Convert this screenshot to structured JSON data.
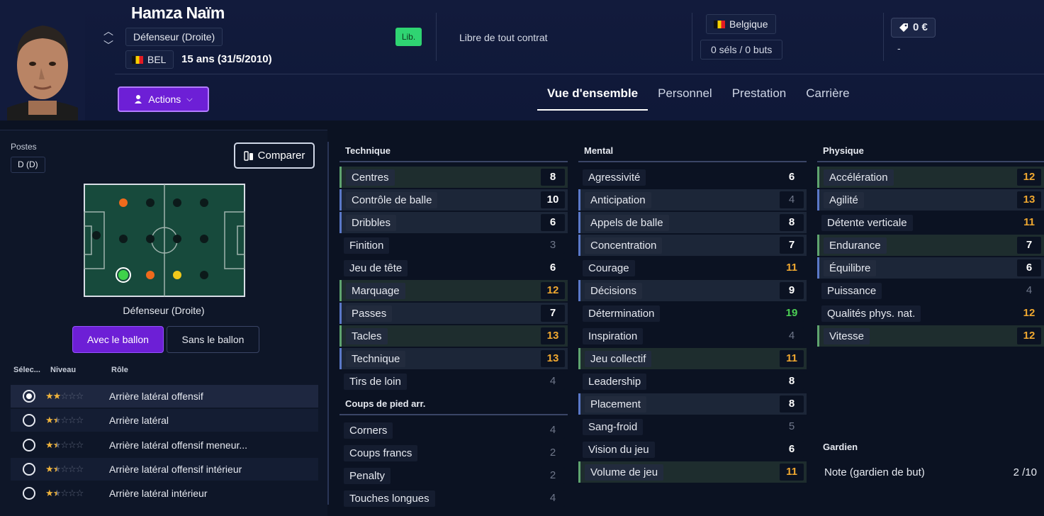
{
  "player": {
    "name": "Hamza Naïm",
    "position": "Défenseur (Droite)",
    "nationality_code": "BEL",
    "age": "15 ans (31/5/2010)",
    "status_badge": "Lib.",
    "contract": "Libre de tout contrat",
    "country": "Belgique",
    "caps": "0 séls / 0 buts",
    "value": "0 €",
    "value_sub": "-"
  },
  "header": {
    "actions_label": "Actions",
    "tabs": [
      {
        "label": "Vue d'ensemble",
        "active": true
      },
      {
        "label": "Personnel",
        "active": false
      },
      {
        "label": "Prestation",
        "active": false
      },
      {
        "label": "Carrière",
        "active": false
      }
    ]
  },
  "left": {
    "postes_label": "Postes",
    "postes_value": "D (D)",
    "compare_label": "Comparer",
    "pitch_label": "Défenseur (Droite)",
    "toggle_on": "Avec le ballon",
    "toggle_off": "Sans le ballon",
    "columns": {
      "select": "Sélec...",
      "level": "Niveau",
      "role": "Rôle"
    },
    "roles": [
      {
        "name": "Arrière latéral offensif",
        "stars": 2,
        "selected": true
      },
      {
        "name": "Arrière latéral",
        "stars": 1.5,
        "selected": false
      },
      {
        "name": "Arrière latéral offensif meneur...",
        "stars": 1.5,
        "selected": false
      },
      {
        "name": "Arrière latéral offensif intérieur",
        "stars": 1.5,
        "selected": false
      },
      {
        "name": "Arrière latéral intérieur",
        "stars": 1.5,
        "selected": false
      }
    ]
  },
  "technique": {
    "title": "Technique",
    "items": [
      {
        "name": "Centres",
        "value": "8",
        "hl": "hi"
      },
      {
        "name": "Contrôle de balle",
        "value": "10",
        "hl": "bl"
      },
      {
        "name": "Dribbles",
        "value": "6",
        "hl": "bl"
      },
      {
        "name": "Finition",
        "value": "3",
        "hl": "plain"
      },
      {
        "name": "Jeu de tête",
        "value": "6",
        "hl": "plain"
      },
      {
        "name": "Marquage",
        "value": "12",
        "hl": "hi"
      },
      {
        "name": "Passes",
        "value": "7",
        "hl": "bl"
      },
      {
        "name": "Tacles",
        "value": "13",
        "hl": "hi"
      },
      {
        "name": "Technique",
        "value": "13",
        "hl": "bl"
      },
      {
        "name": "Tirs de loin",
        "value": "4",
        "hl": "plain"
      }
    ]
  },
  "setpieces": {
    "title": "Coups de pied arr.",
    "items": [
      {
        "name": "Corners",
        "value": "4",
        "hl": "plain"
      },
      {
        "name": "Coups francs",
        "value": "2",
        "hl": "plain"
      },
      {
        "name": "Penalty",
        "value": "2",
        "hl": "plain"
      },
      {
        "name": "Touches longues",
        "value": "4",
        "hl": "plain"
      }
    ]
  },
  "mental": {
    "title": "Mental",
    "items": [
      {
        "name": "Agressivité",
        "value": "6",
        "hl": "plain"
      },
      {
        "name": "Anticipation",
        "value": "4",
        "hl": "bl"
      },
      {
        "name": "Appels de balle",
        "value": "8",
        "hl": "bl"
      },
      {
        "name": "Concentration",
        "value": "7",
        "hl": "bl"
      },
      {
        "name": "Courage",
        "value": "11",
        "hl": "plain"
      },
      {
        "name": "Décisions",
        "value": "9",
        "hl": "bl"
      },
      {
        "name": "Détermination",
        "value": "19",
        "hl": "plain"
      },
      {
        "name": "Inspiration",
        "value": "4",
        "hl": "plain"
      },
      {
        "name": "Jeu collectif",
        "value": "11",
        "hl": "hi"
      },
      {
        "name": "Leadership",
        "value": "8",
        "hl": "plain"
      },
      {
        "name": "Placement",
        "value": "8",
        "hl": "bl"
      },
      {
        "name": "Sang-froid",
        "value": "5",
        "hl": "plain"
      },
      {
        "name": "Vision du jeu",
        "value": "6",
        "hl": "plain"
      },
      {
        "name": "Volume de jeu",
        "value": "11",
        "hl": "hi"
      }
    ]
  },
  "physique": {
    "title": "Physique",
    "items": [
      {
        "name": "Accélération",
        "value": "12",
        "hl": "hi"
      },
      {
        "name": "Agilité",
        "value": "13",
        "hl": "bl"
      },
      {
        "name": "Détente verticale",
        "value": "11",
        "hl": "plain"
      },
      {
        "name": "Endurance",
        "value": "7",
        "hl": "hi"
      },
      {
        "name": "Équilibre",
        "value": "6",
        "hl": "bl"
      },
      {
        "name": "Puissance",
        "value": "4",
        "hl": "plain"
      },
      {
        "name": "Qualités phys. nat.",
        "value": "12",
        "hl": "plain"
      },
      {
        "name": "Vitesse",
        "value": "12",
        "hl": "hi"
      }
    ]
  },
  "gardien": {
    "title": "Gardien",
    "label": "Note (gardien de but)",
    "value": "2 /10"
  },
  "colors": {
    "accent": "#6d1fd6",
    "good": "#4cd054",
    "mid": "#f0a830",
    "low": "#6f778a",
    "lib_badge": "#2fd472"
  }
}
